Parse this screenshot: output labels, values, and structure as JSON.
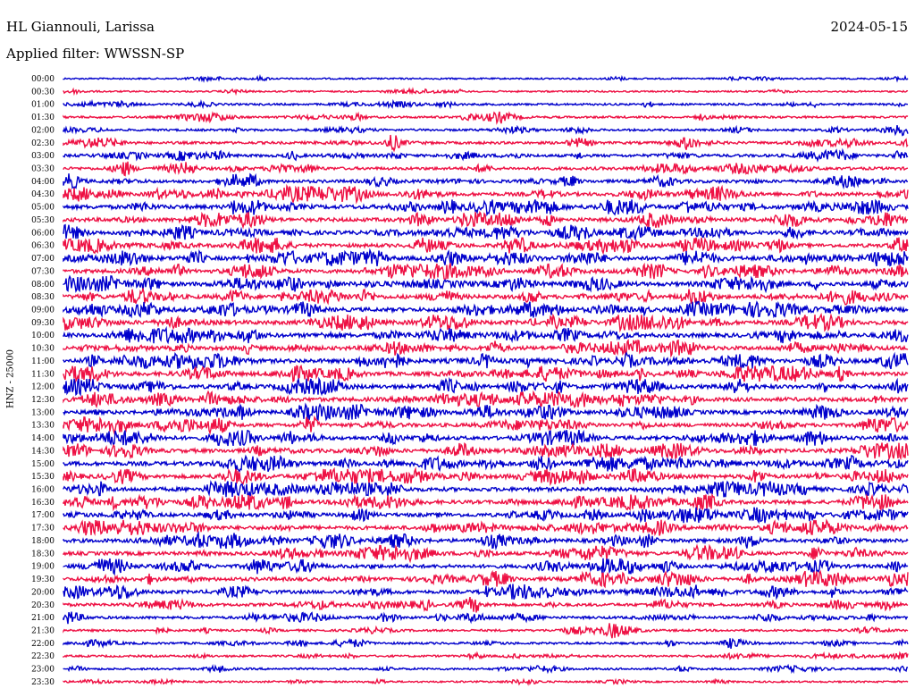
{
  "header": {
    "station": "HL Giannouli, Larissa",
    "date": "2024-05-15",
    "filter": "Applied filter: WWSSN-SP"
  },
  "chart_data": {
    "type": "line",
    "title": "HL Giannouli, Larissa",
    "date": "2024-05-15",
    "subtitle": "Applied filter: WWSSN-SP",
    "ylabel": "HNZ - 25000",
    "trace_colors": [
      "#0000cc",
      "#ee1144"
    ],
    "row_labels": [
      "00:00",
      "00:30",
      "01:00",
      "01:30",
      "02:00",
      "02:30",
      "03:00",
      "03:30",
      "04:00",
      "04:30",
      "05:00",
      "05:30",
      "06:00",
      "06:30",
      "07:00",
      "07:30",
      "08:00",
      "08:30",
      "09:00",
      "09:30",
      "10:00",
      "10:30",
      "11:00",
      "11:30",
      "12:00",
      "12:30",
      "13:00",
      "13:30",
      "14:00",
      "14:30",
      "15:00",
      "15:30",
      "16:00",
      "16:30",
      "17:00",
      "17:30",
      "18:00",
      "18:30",
      "19:00",
      "19:30",
      "20:00",
      "20:30",
      "21:00",
      "21:30",
      "22:00",
      "22:30",
      "23:00",
      "23:30"
    ],
    "activity_level": [
      0.15,
      0.15,
      0.3,
      0.35,
      0.35,
      0.5,
      0.55,
      0.6,
      0.65,
      0.8,
      1.0,
      0.9,
      0.9,
      0.85,
      0.95,
      0.9,
      0.95,
      0.95,
      0.95,
      1.0,
      1.0,
      0.95,
      1.0,
      0.95,
      0.95,
      0.95,
      0.9,
      0.8,
      0.85,
      0.9,
      0.95,
      0.9,
      0.95,
      0.85,
      0.85,
      0.85,
      0.85,
      0.8,
      0.8,
      0.85,
      0.75,
      0.6,
      0.5,
      0.35,
      0.35,
      0.3,
      0.3,
      0.2
    ]
  }
}
